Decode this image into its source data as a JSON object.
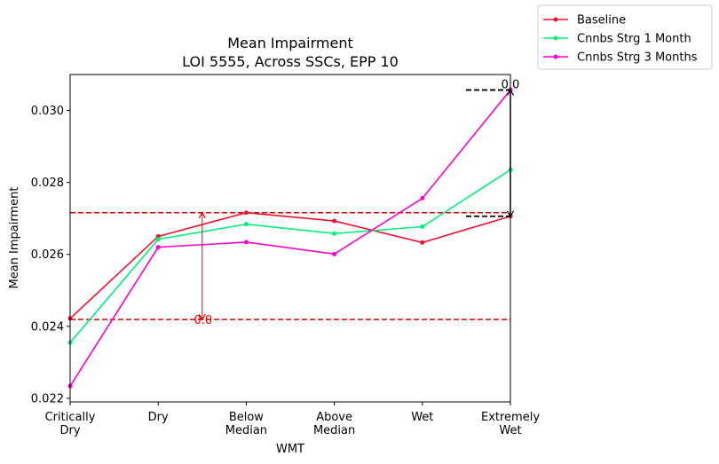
{
  "chart_data": {
    "type": "line",
    "title": "Mean Impairment",
    "subtitle": "LOI 5555, Across SSCs, EPP 10",
    "xlabel": "WMT",
    "ylabel": "Mean Impairment",
    "categories": [
      [
        "Critically",
        "Dry"
      ],
      [
        "Dry"
      ],
      [
        "Below",
        "Median"
      ],
      [
        "Above",
        "Median"
      ],
      [
        "Wet"
      ],
      [
        "Extremely",
        "Wet"
      ]
    ],
    "ylim": [
      0.0219,
      0.031
    ],
    "yticks": [
      0.022,
      0.024,
      0.026,
      0.028,
      0.03
    ],
    "ytick_labels": [
      "0.022",
      "0.024",
      "0.026",
      "0.028",
      "0.030"
    ],
    "series": [
      {
        "name": "Baseline",
        "color": "#f0102e",
        "values": [
          0.02422,
          0.0265,
          0.02716,
          0.02693,
          0.02633,
          0.02706
        ]
      },
      {
        "name": "Cnnbs Strg 1 Month",
        "color": "#00f07a",
        "values": [
          0.02355,
          0.02642,
          0.02684,
          0.02658,
          0.02677,
          0.02835
        ]
      },
      {
        "name": "Cnnbs Strg 3 Months",
        "color": "#ff00cc",
        "values": [
          0.02234,
          0.0262,
          0.02634,
          0.02601,
          0.02756,
          0.03057
        ]
      }
    ],
    "hlines": [
      {
        "y": 0.02716,
        "color": "#e00000"
      },
      {
        "y": 0.02419,
        "color": "#e00000"
      }
    ],
    "annotations": [
      {
        "text": "0.0",
        "x_pos": 1.5,
        "y_top": 0.02716,
        "y_bottom": 0.02419,
        "color": "#e00000"
      },
      {
        "text": "0.0",
        "x_pos": 5,
        "y_top": 0.03057,
        "y_bottom": 0.02706,
        "color": "#000000"
      }
    ],
    "legend_placement": "outside-top-right",
    "grid": false
  }
}
